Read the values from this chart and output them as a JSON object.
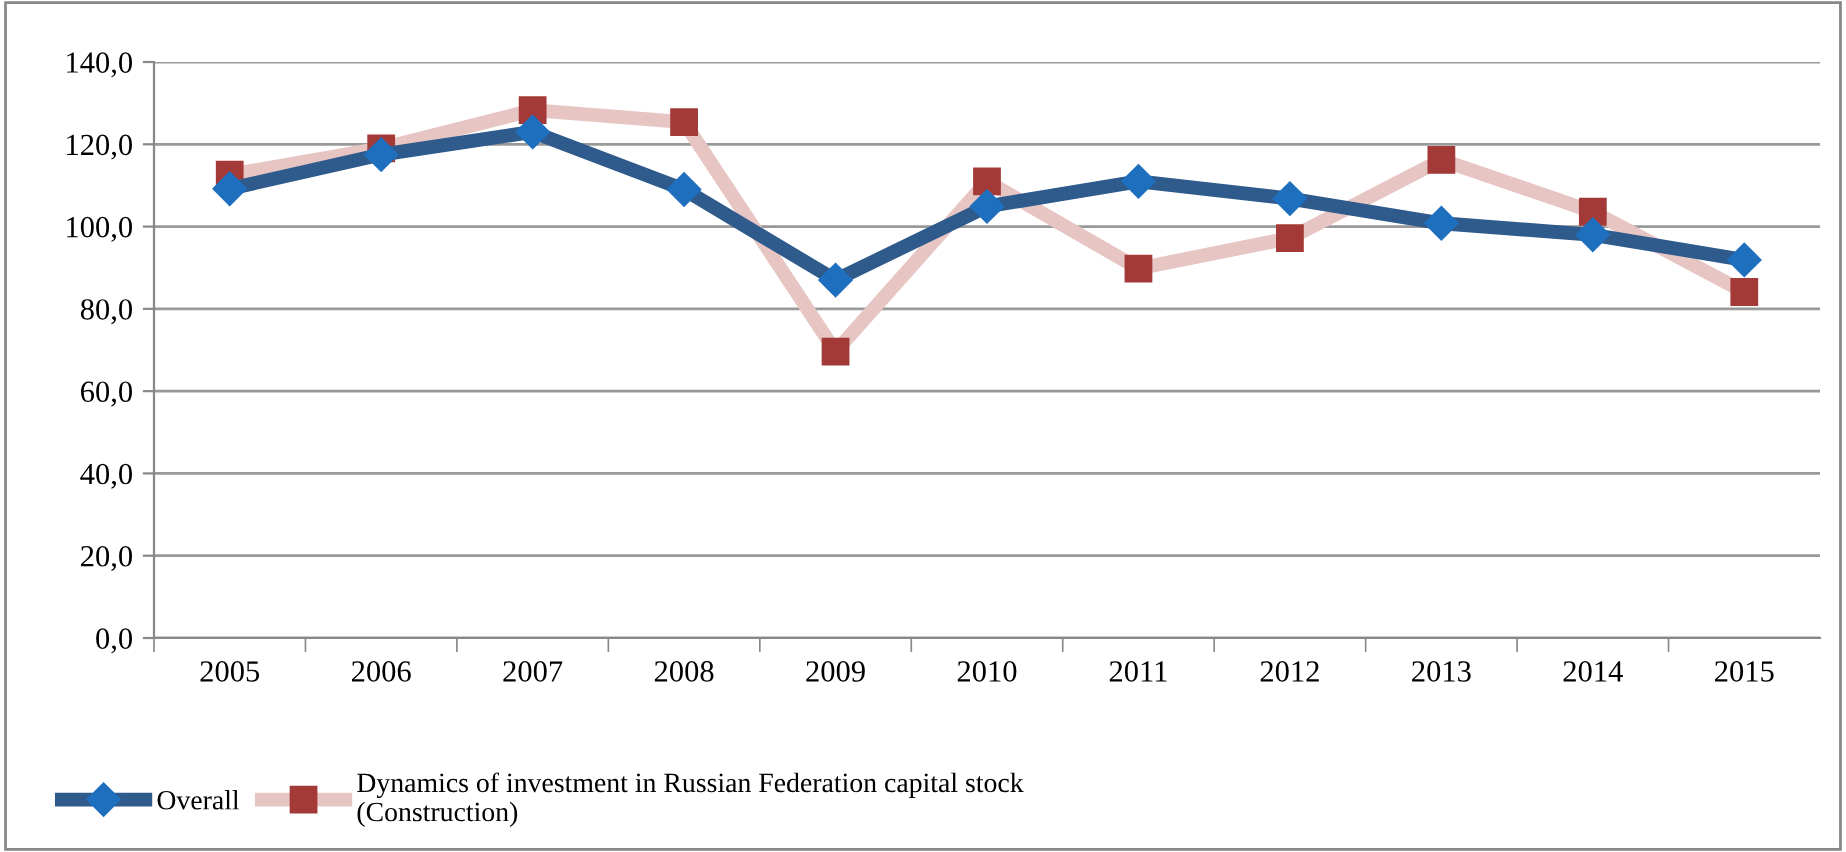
{
  "chart_data": {
    "type": "line",
    "categories": [
      "2005",
      "2006",
      "2007",
      "2008",
      "2009",
      "2010",
      "2011",
      "2012",
      "2013",
      "2014",
      "2015"
    ],
    "series": [
      {
        "name": "Overall",
        "color": "#2e5a8c",
        "marker": "diamond",
        "values": [
          109.2,
          117.5,
          123,
          109,
          87,
          104.9,
          111,
          106.8,
          100.8,
          98,
          91.9
        ]
      },
      {
        "name": "Dynamics of investment in Russian Federation capital stock\n(Construction)",
        "color": "#e6c5c3",
        "marker": "square",
        "values": [
          112.6,
          119,
          128.3,
          125.4,
          69.6,
          111,
          89.8,
          97.2,
          116.2,
          103.6,
          84.1
        ]
      }
    ],
    "ylim": [
      0,
      140
    ],
    "yticks": [
      {
        "value": 0,
        "label": "0,0"
      },
      {
        "value": 20,
        "label": "20,0"
      },
      {
        "value": 40,
        "label": "40,0"
      },
      {
        "value": 60,
        "label": "60,0"
      },
      {
        "value": 80,
        "label": "80,0"
      },
      {
        "value": 100,
        "label": "100,0"
      },
      {
        "value": 120,
        "label": "120,0"
      },
      {
        "value": 140,
        "label": "140,0"
      }
    ],
    "grid": "y",
    "legend": "bottom left",
    "line_style": "solid"
  }
}
